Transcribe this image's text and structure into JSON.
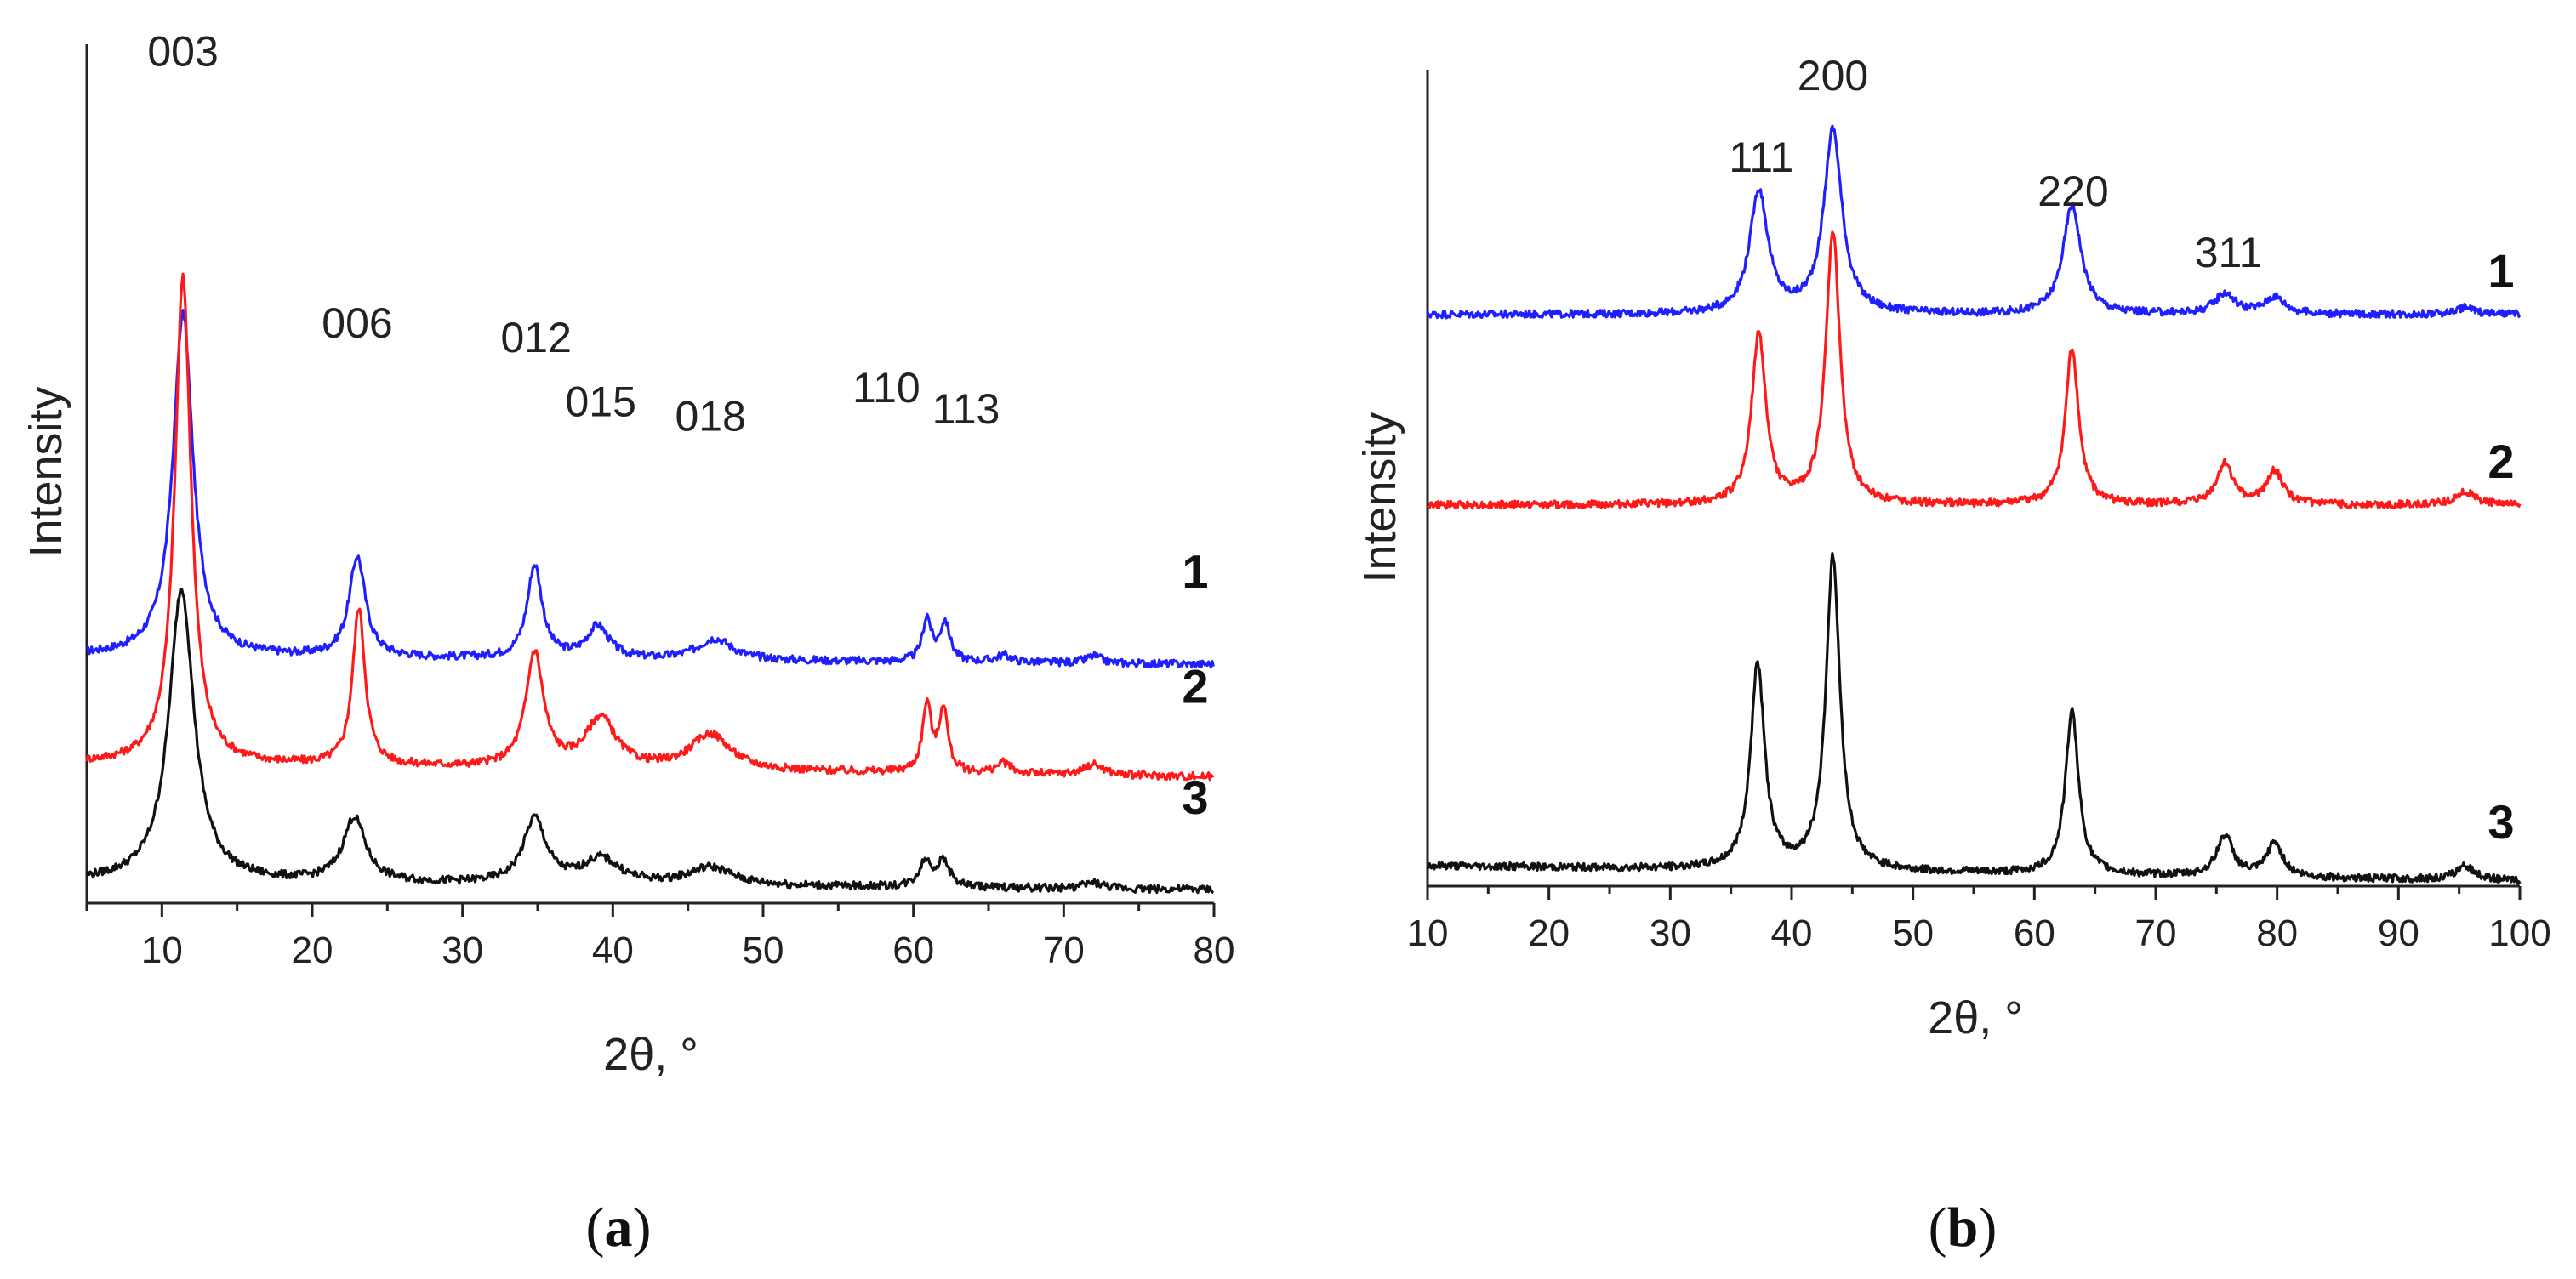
{
  "colors": {
    "series1": "#1f1fff",
    "series2": "#ff1a1a",
    "series3": "#111111",
    "axis": "#222222"
  },
  "chart_data": [
    {
      "panel": "a",
      "panel_label": {
        "open": "(",
        "letter": "a",
        "close": ")"
      },
      "type": "line",
      "xlabel": "2θ, °",
      "ylabel": "Intensity",
      "xlim": [
        5,
        80
      ],
      "xticks": [
        10,
        20,
        30,
        40,
        50,
        60,
        70,
        80
      ],
      "y_ticks_shown": false,
      "ylim": [
        0,
        120
      ],
      "offsets": [
        32,
        16,
        0
      ],
      "series": [
        {
          "name": "1",
          "color": "#1f1fff",
          "baseline": 2.5,
          "slope": -0.015,
          "peaks": [
            [
              11.4,
              48,
              0.8
            ],
            [
              23.0,
              14,
              0.65
            ],
            [
              34.8,
              13,
              0.6
            ],
            [
              39.0,
              4.5,
              0.9
            ],
            [
              46.8,
              3,
              1.4
            ],
            [
              60.9,
              6,
              0.35
            ],
            [
              62.1,
              5.5,
              0.4
            ],
            [
              66.0,
              1,
              0.6
            ],
            [
              72.0,
              1,
              0.6
            ]
          ]
        },
        {
          "name": "2",
          "color": "#ff1a1a",
          "baseline": 3.5,
          "slope": -0.025,
          "peaks": [
            [
              11.4,
              68,
              0.65
            ],
            [
              23.1,
              22,
              0.5
            ],
            [
              34.8,
              16,
              0.7
            ],
            [
              39.2,
              7,
              1.2
            ],
            [
              46.5,
              5,
              1.6
            ],
            [
              60.9,
              9.5,
              0.35
            ],
            [
              62.0,
              9,
              0.35
            ],
            [
              66.0,
              1.5,
              0.6
            ],
            [
              72.0,
              1.5,
              0.8
            ]
          ]
        },
        {
          "name": "3",
          "color": "#111111",
          "baseline": 3.0,
          "slope": -0.015,
          "peaks": [
            [
              11.3,
              41,
              1.0
            ],
            [
              22.8,
              9,
              0.9
            ],
            [
              34.8,
              9,
              0.9
            ],
            [
              39.2,
              3.5,
              1.5
            ],
            [
              46.5,
              2.5,
              1.8
            ],
            [
              60.8,
              3.5,
              0.5
            ],
            [
              62.0,
              3.5,
              0.5
            ],
            [
              72.0,
              0.8,
              0.8
            ]
          ]
        }
      ],
      "peak_labels": [
        {
          "text": "003",
          "x": 11.4,
          "y": 117
        },
        {
          "text": "006",
          "x": 23.0,
          "y": 79
        },
        {
          "text": "012",
          "x": 34.9,
          "y": 77
        },
        {
          "text": "015",
          "x": 39.2,
          "y": 68
        },
        {
          "text": "018",
          "x": 46.5,
          "y": 66
        },
        {
          "text": "110",
          "x": 58.2,
          "y": 70
        },
        {
          "text": "113",
          "x": 63.5,
          "y": 67
        }
      ],
      "series_labels": [
        {
          "text": "1",
          "y": 44
        },
        {
          "text": "2",
          "y": 28
        },
        {
          "text": "3",
          "y": 12.5
        }
      ]
    },
    {
      "panel": "b",
      "panel_label": {
        "open": "(",
        "letter": "b",
        "close": ")"
      },
      "type": "line",
      "xlabel": "2θ, °",
      "ylabel": "Intensity",
      "xlim": [
        10,
        100
      ],
      "xticks": [
        10,
        20,
        30,
        40,
        50,
        60,
        70,
        80,
        90,
        100
      ],
      "y_ticks_shown": false,
      "ylim": [
        0,
        120
      ],
      "offsets": [
        82,
        54,
        0
      ],
      "series": [
        {
          "name": "1",
          "color": "#1f1fff",
          "baseline": 2.0,
          "slope": 0,
          "peaks": [
            [
              37.3,
              18,
              0.9
            ],
            [
              43.4,
              27,
              0.9
            ],
            [
              63.1,
              16,
              0.9
            ],
            [
              75.7,
              3,
              1.0
            ],
            [
              79.8,
              2.5,
              1.0
            ],
            [
              95.5,
              1,
              1.0
            ]
          ]
        },
        {
          "name": "2",
          "color": "#ff1a1a",
          "baseline": 2.0,
          "slope": 0,
          "peaks": [
            [
              37.3,
              25,
              0.7
            ],
            [
              43.4,
              40,
              0.7
            ],
            [
              63.1,
              23,
              0.65
            ],
            [
              75.7,
              6,
              0.8
            ],
            [
              79.8,
              5,
              0.8
            ],
            [
              95.5,
              2,
              1.0
            ]
          ]
        },
        {
          "name": "3",
          "color": "#111111",
          "baseline": 3.0,
          "slope": -0.025,
          "peaks": [
            [
              37.2,
              30,
              0.7
            ],
            [
              43.4,
              46,
              0.7
            ],
            [
              63.1,
              24,
              0.65
            ],
            [
              75.7,
              6,
              0.8
            ],
            [
              79.8,
              5,
              0.8
            ],
            [
              95.5,
              2,
              1.0
            ]
          ]
        }
      ],
      "peak_labels": [
        {
          "text": "111",
          "x": 37.5,
          "y": 105
        },
        {
          "text": "200",
          "x": 43.4,
          "y": 117
        },
        {
          "text": "220",
          "x": 63.2,
          "y": 100
        },
        {
          "text": "311",
          "x": 76.0,
          "y": 91
        }
      ],
      "series_labels": [
        {
          "text": "1",
          "y": 88
        },
        {
          "text": "2",
          "y": 60
        },
        {
          "text": "3",
          "y": 7
        }
      ]
    }
  ]
}
